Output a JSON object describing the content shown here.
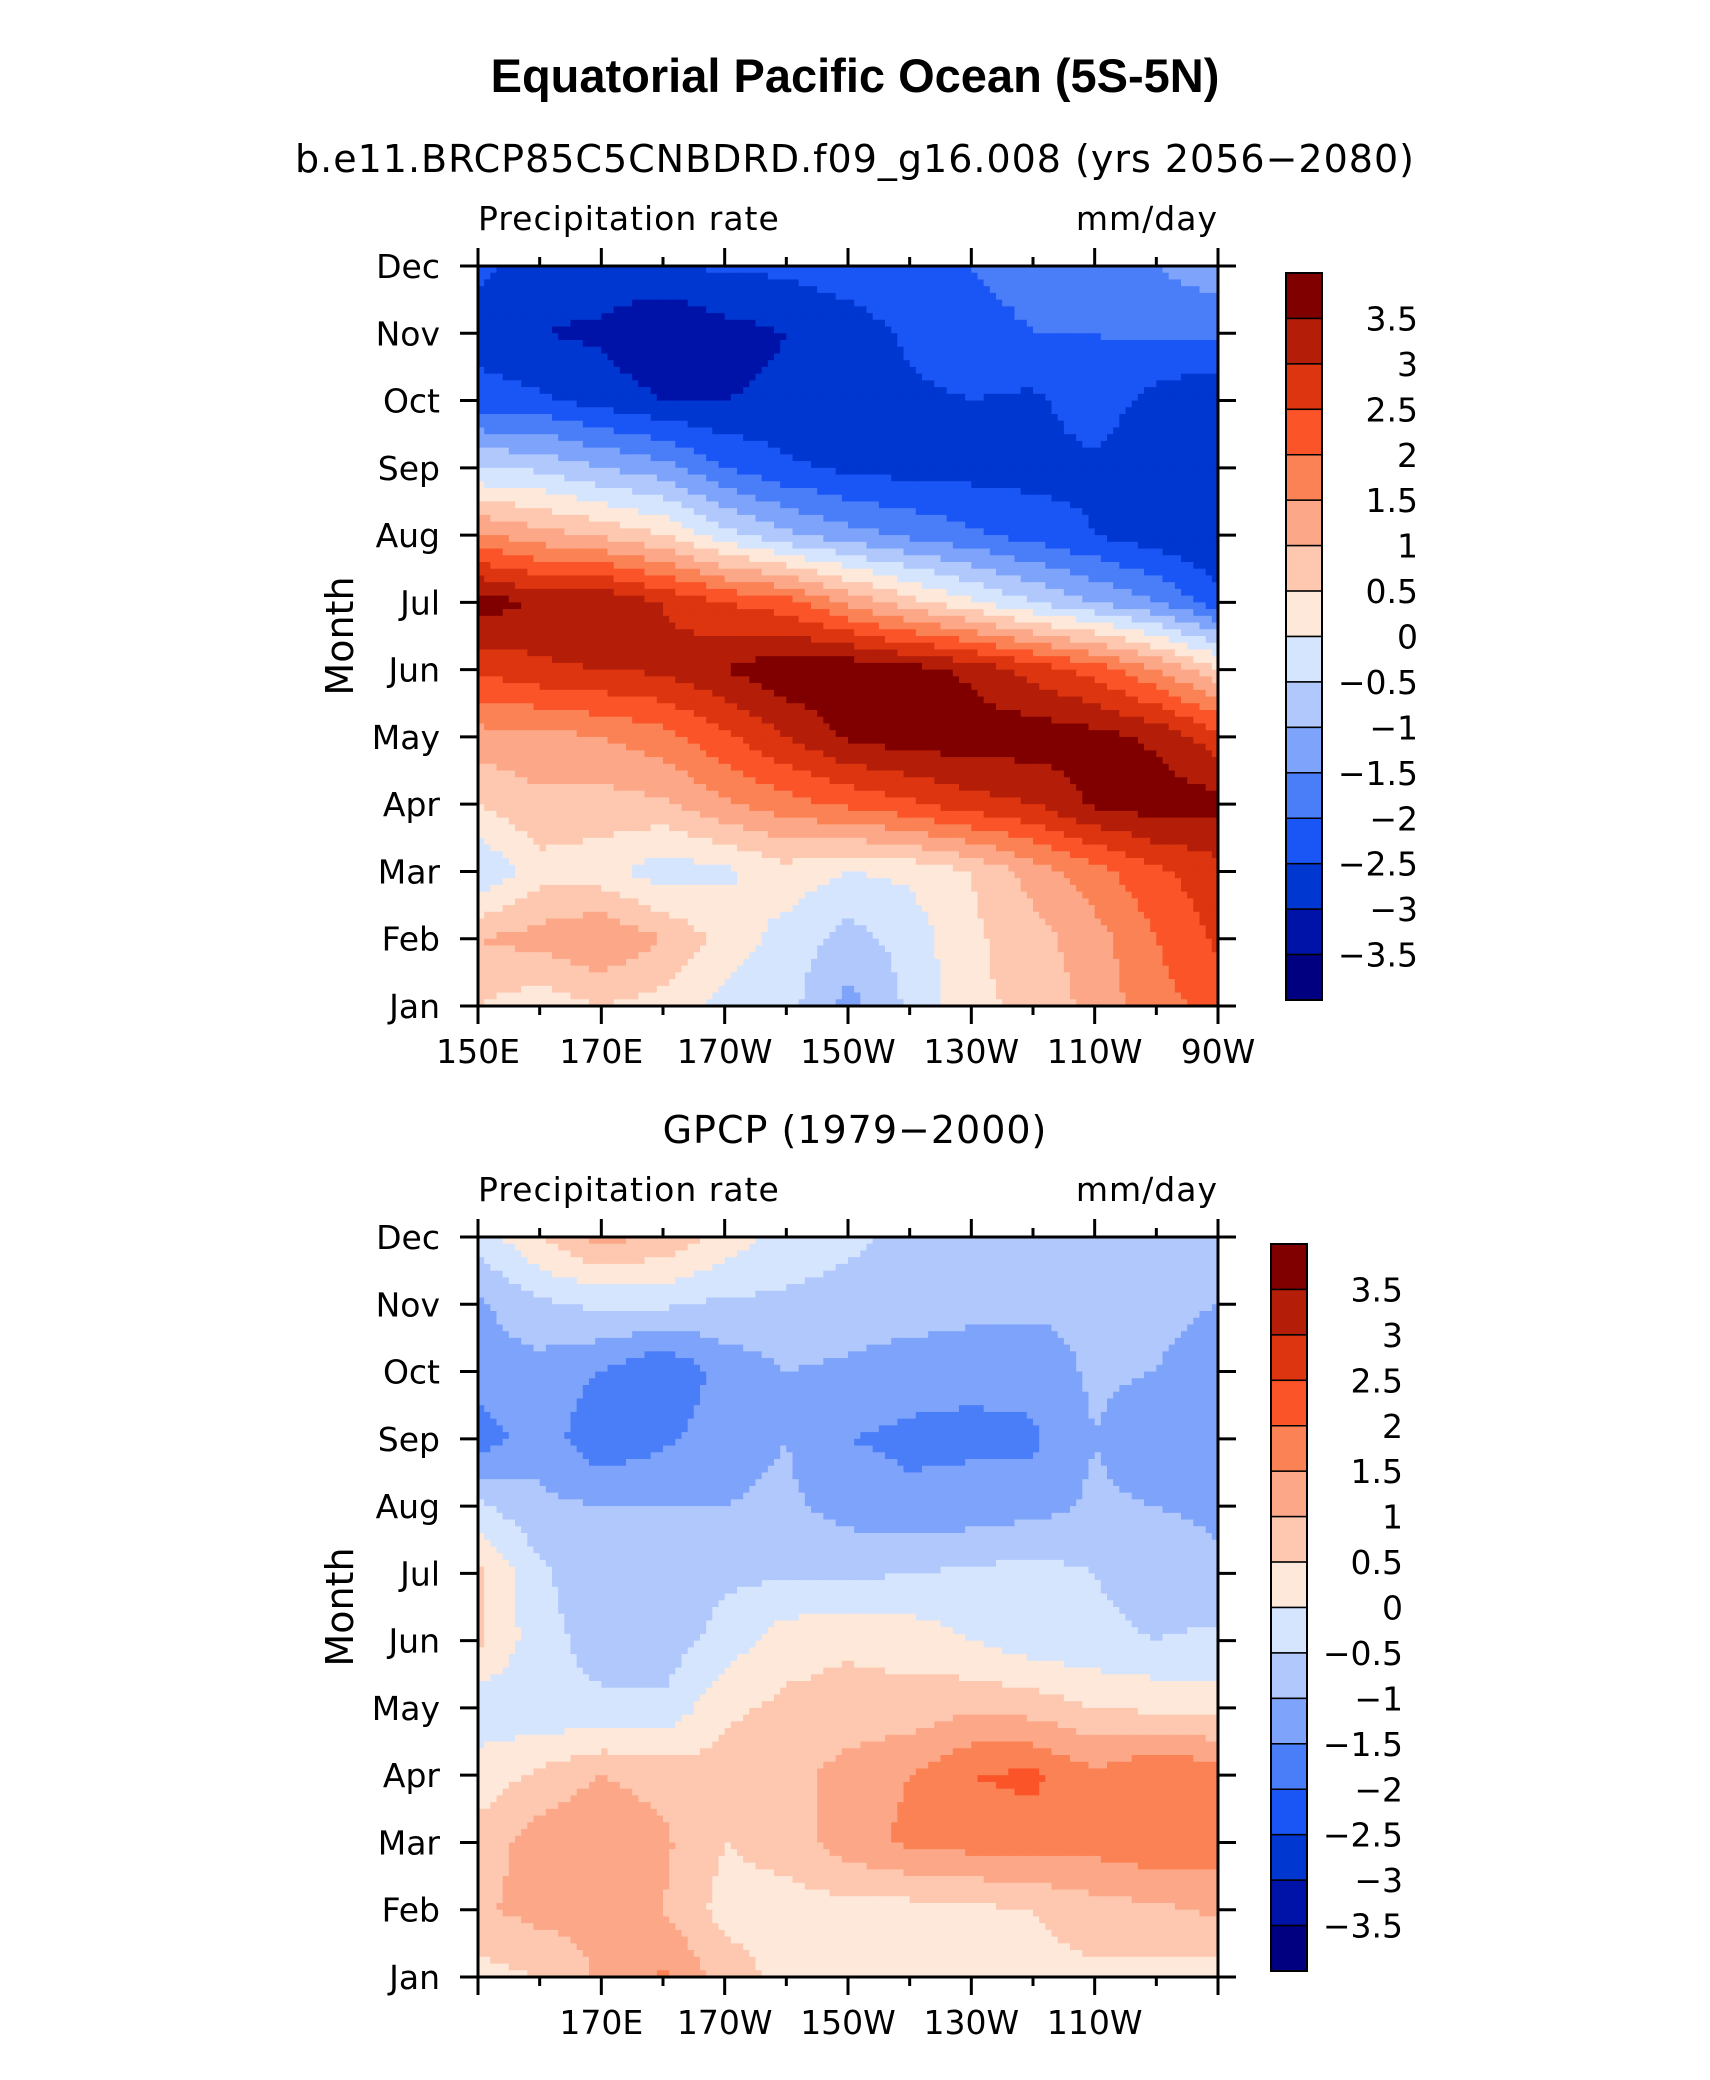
{
  "title": "Equatorial Pacific Ocean (5S-5N)",
  "colors": [
    "#000080",
    "#0013a8",
    "#0037d1",
    "#1a56f5",
    "#4a7ef9",
    "#7ea3fb",
    "#b0c8fc",
    "#d5e5fe",
    "#fde8da",
    "#fdc8af",
    "#fca888",
    "#fb8254",
    "#fa5428",
    "#dd3510",
    "#b41e08",
    "#800000"
  ],
  "colorbar_labels": [
    "3.5",
    "3",
    "2.5",
    "2",
    "1.5",
    "1",
    "0.5",
    "0",
    "−0.5",
    "−1",
    "−1.5",
    "−2",
    "−2.5",
    "−3",
    "−3.5"
  ],
  "months": [
    "Jan",
    "Feb",
    "Mar",
    "Apr",
    "May",
    "Jun",
    "Jul",
    "Aug",
    "Sep",
    "Oct",
    "Nov",
    "Dec"
  ],
  "chart_data": [
    {
      "type": "heatmap",
      "subtitle": "b.e11.BRCP85C5CNBDRD.f09_g16.008 (yrs 2056−2080)",
      "left_label": "Precipitation rate",
      "right_label": "mm/day",
      "ylabel": "Month",
      "xlabel": "",
      "x_tick_labels": [
        "150E",
        "170E",
        "170W",
        "150W",
        "130W",
        "110W",
        "90W"
      ],
      "x_tick_lons": [
        150,
        170,
        190,
        210,
        230,
        250,
        270
      ],
      "x_range": [
        150,
        270
      ],
      "levels": [
        -3.5,
        -3,
        -2.5,
        -2,
        -1.5,
        -1,
        -0.5,
        0,
        0.5,
        1,
        1.5,
        2,
        2.5,
        3,
        3.5
      ],
      "lon": [
        150,
        160,
        170,
        180,
        190,
        200,
        210,
        220,
        230,
        240,
        250,
        260,
        270
      ],
      "z": [
        [
          0.5,
          0.2,
          0.5,
          0.3,
          -0.2,
          -0.3,
          -1.2,
          -0.4,
          0.4,
          0.6,
          1.2,
          1.8,
          2.2
        ],
        [
          1.0,
          1.2,
          1.5,
          1.0,
          0.3,
          -0.2,
          -0.7,
          -0.3,
          0.4,
          0.8,
          1.3,
          2.0,
          2.6
        ],
        [
          -0.5,
          0.3,
          0.2,
          -0.3,
          -0.1,
          0.3,
          0.0,
          0.1,
          0.5,
          1.2,
          1.8,
          2.4,
          2.8
        ],
        [
          0.5,
          0.9,
          0.8,
          0.9,
          1.4,
          1.8,
          2.1,
          2.4,
          2.8,
          3.0,
          3.6,
          3.8,
          3.7
        ],
        [
          1.3,
          1.3,
          1.5,
          1.8,
          2.4,
          3.0,
          3.6,
          3.8,
          3.8,
          3.8,
          3.7,
          3.4,
          2.7
        ],
        [
          2.6,
          2.9,
          3.0,
          3.1,
          3.5,
          3.9,
          3.9,
          3.7,
          3.4,
          2.8,
          2.3,
          1.5,
          0.6
        ],
        [
          3.8,
          3.4,
          3.5,
          3.0,
          2.5,
          2.2,
          1.4,
          0.7,
          0.1,
          -0.5,
          -1.0,
          -1.5,
          -2.3
        ],
        [
          1.6,
          1.2,
          0.9,
          0.5,
          -0.3,
          -0.9,
          -1.3,
          -1.6,
          -1.9,
          -2.2,
          -2.5,
          -2.8,
          -3.0
        ],
        [
          -0.5,
          -0.6,
          -1.0,
          -1.3,
          -2.0,
          -2.4,
          -2.6,
          -2.7,
          -2.7,
          -2.7,
          -2.6,
          -2.9,
          -3.0
        ],
        [
          -2.3,
          -2.4,
          -2.7,
          -3.0,
          -3.0,
          -2.9,
          -3.0,
          -2.6,
          -2.5,
          -2.6,
          -2.2,
          -2.7,
          -3.0
        ],
        [
          -2.7,
          -3.0,
          -3.1,
          -3.5,
          -3.2,
          -3.0,
          -2.8,
          -2.4,
          -2.2,
          -2.0,
          -2.0,
          -1.9,
          -1.9
        ],
        [
          -2.4,
          -2.7,
          -2.7,
          -2.6,
          -2.4,
          -2.4,
          -2.2,
          -2.0,
          -2.0,
          -1.8,
          -1.8,
          -1.5,
          -1.2
        ]
      ]
    },
    {
      "type": "heatmap",
      "subtitle": "GPCP (1979−2000)",
      "left_label": "Precipitation rate",
      "right_label": "mm/day",
      "ylabel": "Month",
      "xlabel": "",
      "x_tick_labels": [
        "170E",
        "170W",
        "150W",
        "130W",
        "110W"
      ],
      "x_tick_lons": [
        170,
        190,
        210,
        230,
        250
      ],
      "x_range": [
        150,
        270
      ],
      "levels": [
        -3.5,
        -3,
        -2.5,
        -2,
        -1.5,
        -1,
        -0.5,
        0,
        0.5,
        1,
        1.5,
        2,
        2.5,
        3,
        3.5
      ],
      "lon": [
        150,
        160,
        170,
        180,
        190,
        200,
        210,
        220,
        230,
        240,
        250,
        260,
        270
      ],
      "z": [
        [
          0.3,
          0.5,
          1.1,
          1.6,
          0.8,
          0.3,
          0.2,
          0.2,
          0.3,
          0.3,
          0.4,
          0.3,
          0.2
        ],
        [
          0.9,
          1.2,
          1.1,
          1.0,
          0.3,
          0.3,
          0.3,
          0.3,
          0.4,
          0.5,
          0.8,
          0.9,
          1.1
        ],
        [
          0.7,
          1.3,
          1.5,
          1.1,
          0.5,
          0.7,
          1.3,
          1.6,
          1.7,
          1.8,
          1.7,
          1.9,
          1.8
        ],
        [
          0.2,
          0.6,
          1.0,
          0.8,
          0.7,
          0.8,
          1.2,
          1.5,
          2.0,
          2.1,
          1.6,
          2.0,
          1.8
        ],
        [
          -0.3,
          -0.4,
          -0.4,
          -0.4,
          0.4,
          0.6,
          0.7,
          0.7,
          0.9,
          0.8,
          0.5,
          0.4,
          0.3
        ],
        [
          0.6,
          -0.3,
          -0.7,
          -0.8,
          -0.3,
          0.3,
          0.4,
          0.3,
          0.0,
          -0.3,
          -0.4,
          -0.5,
          -0.4
        ],
        [
          0.6,
          -0.4,
          -0.9,
          -0.8,
          -0.6,
          -0.6,
          -0.6,
          -0.5,
          -0.4,
          -0.3,
          -0.5,
          -0.7,
          -0.9
        ],
        [
          -0.4,
          -0.9,
          -1.0,
          -1.0,
          -1.0,
          -0.9,
          -1.2,
          -1.4,
          -1.3,
          -1.2,
          -0.9,
          -1.0,
          -1.1
        ],
        [
          -1.8,
          -1.2,
          -1.9,
          -1.6,
          -1.2,
          -1.0,
          -1.5,
          -1.6,
          -1.6,
          -1.6,
          -1.0,
          -1.4,
          -1.4
        ],
        [
          -1.2,
          -1.2,
          -1.5,
          -2.0,
          -1.3,
          -1.0,
          -1.1,
          -1.3,
          -1.4,
          -1.3,
          -0.9,
          -1.0,
          -1.2
        ],
        [
          -1.1,
          -0.6,
          -0.4,
          -0.4,
          -0.6,
          -0.6,
          -0.7,
          -0.7,
          -0.8,
          -0.9,
          -0.9,
          -0.9,
          -1.0
        ],
        [
          -0.3,
          0.5,
          1.2,
          0.9,
          0.3,
          -0.2,
          -0.4,
          -0.6,
          -0.7,
          -0.8,
          -0.8,
          -0.8,
          -0.8
        ]
      ]
    }
  ]
}
